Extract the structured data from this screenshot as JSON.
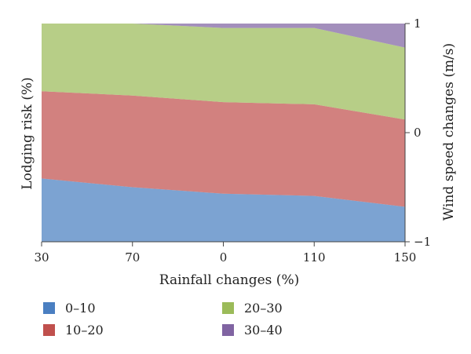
{
  "chart_data": {
    "type": "area",
    "stacked": true,
    "x_tick_labels": [
      "30",
      "70",
      "0",
      "110",
      "150"
    ],
    "xlabel": "Rainfall changes (%)",
    "ylabel": "Lodging risk (%)",
    "y2label": "Wind speed changes (m/s)",
    "y2_ticks": [
      "1",
      "0",
      "−1"
    ],
    "y2lim": [
      -1,
      1
    ],
    "ylim": [
      0,
      100
    ],
    "grid": false,
    "legend_position": "bottom",
    "series": [
      {
        "name": "0–10",
        "color": "#4a7fc1",
        "values": [
          29,
          25,
          22,
          21,
          16
        ]
      },
      {
        "name": "10–20",
        "color": "#c0504d",
        "values": [
          40,
          42,
          42,
          42,
          40
        ]
      },
      {
        "name": "20–30",
        "color": "#9bbb59",
        "values": [
          31,
          33,
          34,
          35,
          33
        ]
      },
      {
        "name": "30–40",
        "color": "#8064a2",
        "values": [
          0,
          0,
          2,
          2,
          11
        ]
      }
    ]
  }
}
